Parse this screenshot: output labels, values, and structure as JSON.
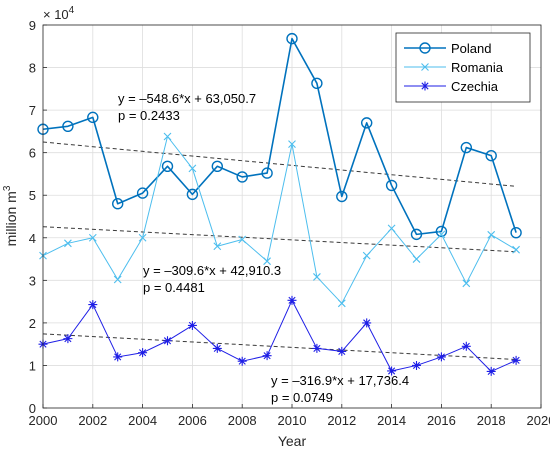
{
  "chart_data": {
    "type": "line",
    "xlabel": "Year",
    "ylabel": "million m",
    "ylabel_sup": "3",
    "exponent_label": "× 10",
    "exponent_sup": "4",
    "xlim": [
      2000,
      2020
    ],
    "ylim": [
      0,
      90000
    ],
    "xticks": [
      "2000",
      "2002",
      "2004",
      "2006",
      "2008",
      "2010",
      "2012",
      "2014",
      "2016",
      "2018",
      "2020"
    ],
    "yticks": [
      "0",
      "1",
      "2",
      "3",
      "4",
      "5",
      "6",
      "7",
      "8",
      "9"
    ],
    "grid": true,
    "legend_position": "top-right",
    "x": [
      2000,
      2001,
      2002,
      2003,
      2004,
      2005,
      2006,
      2007,
      2008,
      2009,
      2010,
      2011,
      2012,
      2013,
      2014,
      2015,
      2016,
      2017,
      2018,
      2019
    ],
    "series": [
      {
        "name": "Poland",
        "color": "#0072BD",
        "marker": "circle",
        "values": [
          65500,
          66200,
          68300,
          48000,
          50500,
          56800,
          50200,
          56800,
          54300,
          55200,
          86800,
          76300,
          49700,
          67000,
          52300,
          40800,
          41500,
          61200,
          59300,
          41200
        ]
      },
      {
        "name": "Romania",
        "color": "#4DBEEE",
        "marker": "x",
        "values": [
          35800,
          38700,
          40000,
          30200,
          40000,
          63800,
          56300,
          38000,
          39600,
          34500,
          62000,
          30800,
          24600,
          35800,
          42200,
          35000,
          40800,
          29300,
          40700,
          37200
        ]
      },
      {
        "name": "Czechia",
        "color": "#1E1EE6",
        "marker": "star",
        "values": [
          15000,
          16300,
          24300,
          12000,
          13000,
          15800,
          19400,
          14000,
          11000,
          12300,
          25300,
          14000,
          13300,
          20000,
          8700,
          10000,
          12000,
          14500,
          8600,
          11200
        ]
      }
    ],
    "trendlines": [
      {
        "series": "Poland",
        "equation": "y = –548.6*x + 63,050.7",
        "p": "p = 0.2433",
        "slope": -548.6,
        "intercept": 63050.7
      },
      {
        "series": "Romania",
        "equation": "y = –309.6*x + 42,910.3",
        "p": "p = 0.4481",
        "slope": -309.6,
        "intercept": 42910.3
      },
      {
        "series": "Czechia",
        "equation": "y = –316.9*x + 17,736.4",
        "p": "p = 0.0749",
        "slope": -316.9,
        "intercept": 17736.4
      }
    ]
  }
}
